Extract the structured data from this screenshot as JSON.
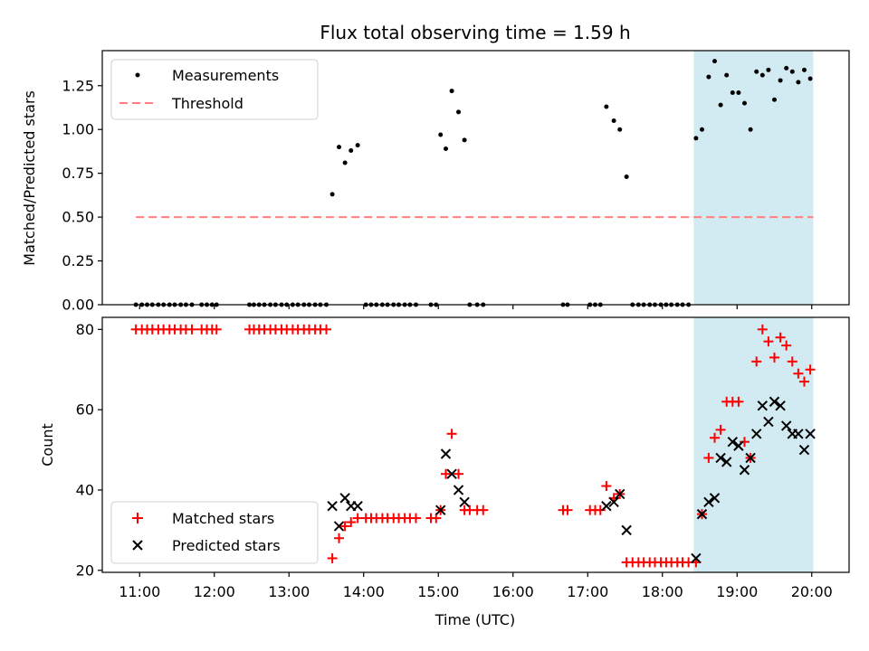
{
  "title": "Flux total observing time = 1.59 h",
  "colors": {
    "measurement": "#000000",
    "threshold": "#ff7f7f",
    "matched": "#ff0000",
    "predicted": "#000000",
    "shade": "#add8e6"
  },
  "chart_data": [
    {
      "type": "scatter",
      "panel": "top",
      "ylabel": "Matched/Predicted stars",
      "ylim": [
        0,
        1.45
      ],
      "yticks": [
        "0.00",
        "0.25",
        "0.50",
        "0.75",
        "1.00",
        "1.25"
      ],
      "xlim": [
        10.5,
        20.5
      ],
      "legend": {
        "position": "upper-left",
        "entries": [
          "Measurements",
          "Threshold"
        ]
      },
      "shaded_x_range": [
        18.42,
        20.02
      ],
      "threshold": {
        "y": 0.5,
        "x": [
          10.95,
          20.02
        ]
      },
      "measurements": [
        [
          10.95,
          0
        ],
        [
          11.03,
          0
        ],
        [
          11.1,
          0
        ],
        [
          11.17,
          0
        ],
        [
          11.25,
          0
        ],
        [
          11.32,
          0
        ],
        [
          11.4,
          0
        ],
        [
          11.47,
          0
        ],
        [
          11.55,
          0
        ],
        [
          11.62,
          0
        ],
        [
          11.7,
          0
        ],
        [
          11.83,
          0
        ],
        [
          11.9,
          0
        ],
        [
          11.97,
          0
        ],
        [
          12.03,
          0
        ],
        [
          12.47,
          0
        ],
        [
          12.53,
          0
        ],
        [
          12.6,
          0
        ],
        [
          12.67,
          0
        ],
        [
          12.75,
          0
        ],
        [
          12.82,
          0
        ],
        [
          12.9,
          0
        ],
        [
          12.97,
          0
        ],
        [
          13.05,
          0
        ],
        [
          13.12,
          0
        ],
        [
          13.2,
          0
        ],
        [
          13.27,
          0
        ],
        [
          13.35,
          0
        ],
        [
          13.42,
          0
        ],
        [
          13.5,
          0
        ],
        [
          13.58,
          0.63
        ],
        [
          13.67,
          0.9
        ],
        [
          13.75,
          0.81
        ],
        [
          13.83,
          0.88
        ],
        [
          13.92,
          0.91
        ],
        [
          14.03,
          0
        ],
        [
          14.1,
          0
        ],
        [
          14.17,
          0
        ],
        [
          14.25,
          0
        ],
        [
          14.32,
          0
        ],
        [
          14.4,
          0
        ],
        [
          14.47,
          0
        ],
        [
          14.55,
          0
        ],
        [
          14.62,
          0
        ],
        [
          14.7,
          0
        ],
        [
          14.9,
          0
        ],
        [
          14.97,
          0
        ],
        [
          15.03,
          0.97
        ],
        [
          15.1,
          0.89
        ],
        [
          15.18,
          1.22
        ],
        [
          15.27,
          1.1
        ],
        [
          15.35,
          0.94
        ],
        [
          15.42,
          0
        ],
        [
          15.52,
          0
        ],
        [
          15.6,
          0
        ],
        [
          16.67,
          0
        ],
        [
          16.73,
          0
        ],
        [
          17.03,
          0
        ],
        [
          17.1,
          0
        ],
        [
          17.17,
          0
        ],
        [
          17.25,
          1.13
        ],
        [
          17.35,
          1.05
        ],
        [
          17.43,
          1.0
        ],
        [
          17.52,
          0.73
        ],
        [
          17.6,
          0
        ],
        [
          17.68,
          0
        ],
        [
          17.75,
          0
        ],
        [
          17.83,
          0
        ],
        [
          17.9,
          0
        ],
        [
          17.98,
          0
        ],
        [
          18.05,
          0
        ],
        [
          18.12,
          0
        ],
        [
          18.2,
          0
        ],
        [
          18.27,
          0
        ],
        [
          18.35,
          0
        ],
        [
          18.45,
          0.95
        ],
        [
          18.53,
          1.0
        ],
        [
          18.62,
          1.3
        ],
        [
          18.7,
          1.39
        ],
        [
          18.78,
          1.14
        ],
        [
          18.86,
          1.31
        ],
        [
          18.94,
          1.21
        ],
        [
          19.02,
          1.21
        ],
        [
          19.1,
          1.15
        ],
        [
          19.18,
          1.0
        ],
        [
          19.26,
          1.33
        ],
        [
          19.34,
          1.31
        ],
        [
          19.42,
          1.34
        ],
        [
          19.5,
          1.17
        ],
        [
          19.58,
          1.28
        ],
        [
          19.66,
          1.35
        ],
        [
          19.74,
          1.33
        ],
        [
          19.82,
          1.27
        ],
        [
          19.9,
          1.34
        ],
        [
          19.98,
          1.29
        ]
      ]
    },
    {
      "type": "scatter",
      "panel": "bottom",
      "ylabel": "Count",
      "xlabel": "Time (UTC)",
      "ylim": [
        19.5,
        83
      ],
      "yticks": [
        "20",
        "40",
        "60",
        "80"
      ],
      "xlim": [
        10.5,
        20.5
      ],
      "xticks": [
        "11:00",
        "12:00",
        "13:00",
        "14:00",
        "15:00",
        "16:00",
        "17:00",
        "18:00",
        "19:00",
        "20:00"
      ],
      "legend": {
        "position": "lower-left",
        "entries": [
          "Matched stars",
          "Predicted stars"
        ]
      },
      "shaded_x_range": [
        18.42,
        20.02
      ],
      "matched": [
        [
          10.95,
          80
        ],
        [
          11.03,
          80
        ],
        [
          11.1,
          80
        ],
        [
          11.17,
          80
        ],
        [
          11.25,
          80
        ],
        [
          11.32,
          80
        ],
        [
          11.4,
          80
        ],
        [
          11.47,
          80
        ],
        [
          11.55,
          80
        ],
        [
          11.62,
          80
        ],
        [
          11.7,
          80
        ],
        [
          11.83,
          80
        ],
        [
          11.9,
          80
        ],
        [
          11.97,
          80
        ],
        [
          12.03,
          80
        ],
        [
          12.47,
          80
        ],
        [
          12.53,
          80
        ],
        [
          12.6,
          80
        ],
        [
          12.67,
          80
        ],
        [
          12.75,
          80
        ],
        [
          12.82,
          80
        ],
        [
          12.9,
          80
        ],
        [
          12.97,
          80
        ],
        [
          13.05,
          80
        ],
        [
          13.12,
          80
        ],
        [
          13.2,
          80
        ],
        [
          13.27,
          80
        ],
        [
          13.35,
          80
        ],
        [
          13.42,
          80
        ],
        [
          13.5,
          80
        ],
        [
          13.58,
          23
        ],
        [
          13.67,
          28
        ],
        [
          13.75,
          31
        ],
        [
          13.83,
          32
        ],
        [
          13.92,
          33
        ],
        [
          14.03,
          33
        ],
        [
          14.1,
          33
        ],
        [
          14.17,
          33
        ],
        [
          14.25,
          33
        ],
        [
          14.32,
          33
        ],
        [
          14.4,
          33
        ],
        [
          14.47,
          33
        ],
        [
          14.55,
          33
        ],
        [
          14.62,
          33
        ],
        [
          14.7,
          33
        ],
        [
          14.9,
          33
        ],
        [
          14.97,
          33
        ],
        [
          15.03,
          35
        ],
        [
          15.1,
          44
        ],
        [
          15.18,
          54
        ],
        [
          15.27,
          44
        ],
        [
          15.35,
          35
        ],
        [
          15.42,
          35
        ],
        [
          15.52,
          35
        ],
        [
          15.6,
          35
        ],
        [
          16.67,
          35
        ],
        [
          16.73,
          35
        ],
        [
          17.03,
          35
        ],
        [
          17.1,
          35
        ],
        [
          17.17,
          35
        ],
        [
          17.25,
          41
        ],
        [
          17.35,
          38
        ],
        [
          17.43,
          39
        ],
        [
          17.52,
          22
        ],
        [
          17.6,
          22
        ],
        [
          17.68,
          22
        ],
        [
          17.75,
          22
        ],
        [
          17.83,
          22
        ],
        [
          17.9,
          22
        ],
        [
          17.98,
          22
        ],
        [
          18.05,
          22
        ],
        [
          18.12,
          22
        ],
        [
          18.2,
          22
        ],
        [
          18.27,
          22
        ],
        [
          18.35,
          22
        ],
        [
          18.45,
          22
        ],
        [
          18.53,
          34
        ],
        [
          18.62,
          48
        ],
        [
          18.7,
          53
        ],
        [
          18.78,
          55
        ],
        [
          18.86,
          62
        ],
        [
          18.94,
          62
        ],
        [
          19.02,
          62
        ],
        [
          19.1,
          52
        ],
        [
          19.18,
          48
        ],
        [
          19.26,
          72
        ],
        [
          19.34,
          80
        ],
        [
          19.42,
          77
        ],
        [
          19.5,
          73
        ],
        [
          19.58,
          78
        ],
        [
          19.66,
          76
        ],
        [
          19.74,
          72
        ],
        [
          19.82,
          69
        ],
        [
          19.9,
          67
        ],
        [
          19.98,
          70
        ]
      ],
      "predicted": [
        [
          13.58,
          36
        ],
        [
          13.67,
          31
        ],
        [
          13.75,
          38
        ],
        [
          13.83,
          36
        ],
        [
          13.92,
          36
        ],
        [
          15.03,
          35
        ],
        [
          15.1,
          49
        ],
        [
          15.18,
          44
        ],
        [
          15.27,
          40
        ],
        [
          15.35,
          37
        ],
        [
          17.25,
          36
        ],
        [
          17.35,
          37
        ],
        [
          17.43,
          39
        ],
        [
          17.52,
          30
        ],
        [
          18.45,
          23
        ],
        [
          18.53,
          34
        ],
        [
          18.62,
          37
        ],
        [
          18.7,
          38
        ],
        [
          18.78,
          48
        ],
        [
          18.86,
          47
        ],
        [
          18.94,
          52
        ],
        [
          19.02,
          51
        ],
        [
          19.1,
          45
        ],
        [
          19.18,
          48
        ],
        [
          19.26,
          54
        ],
        [
          19.34,
          61
        ],
        [
          19.42,
          57
        ],
        [
          19.5,
          62
        ],
        [
          19.58,
          61
        ],
        [
          19.66,
          56
        ],
        [
          19.74,
          54
        ],
        [
          19.82,
          54
        ],
        [
          19.9,
          50
        ],
        [
          19.98,
          54
        ]
      ]
    }
  ]
}
